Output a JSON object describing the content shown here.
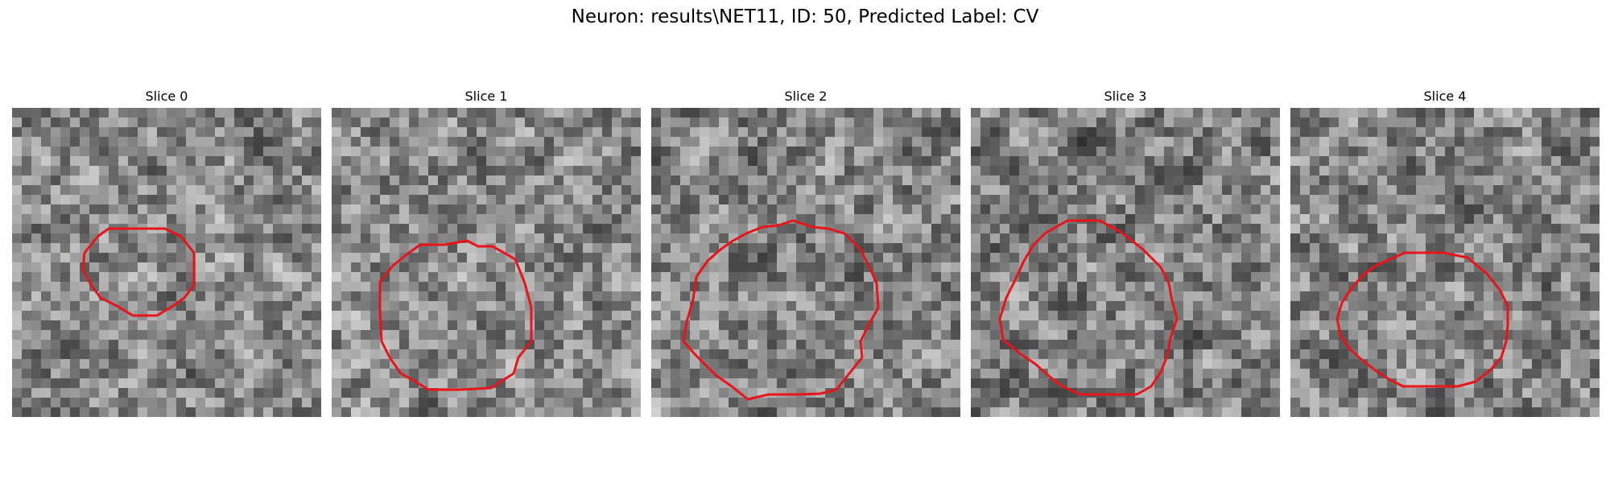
{
  "figure": {
    "title": "Neuron: results\\NET11, ID: 50, Predicted Label: CV",
    "contour_color": "#e8141a"
  },
  "panels": [
    {
      "title": "Slice 0",
      "seed": 11,
      "brightness": 0.0
    },
    {
      "title": "Slice 1",
      "seed": 23,
      "brightness": 0.02
    },
    {
      "title": "Slice 2",
      "seed": 37,
      "brightness": -0.02
    },
    {
      "title": "Slice 3",
      "seed": 41,
      "brightness": -0.04
    },
    {
      "title": "Slice 4",
      "seed": 59,
      "brightness": 0.0
    }
  ]
}
